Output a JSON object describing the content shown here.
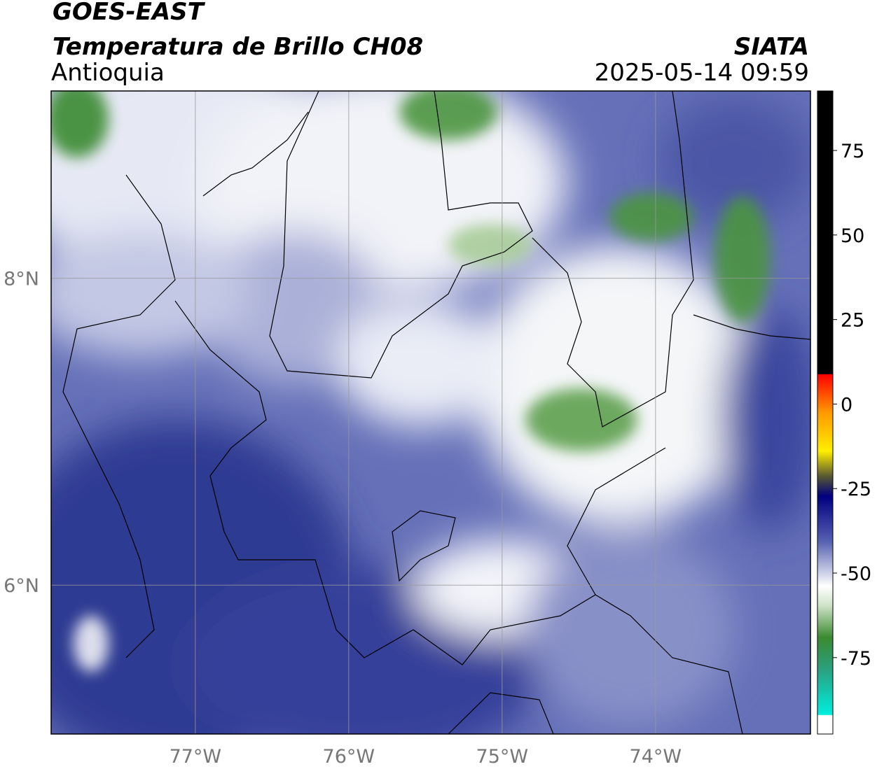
{
  "header": {
    "title": "GOES-EAST",
    "product": "Temperatura de Brillo CH08",
    "region": "Antioquia",
    "source": "SIATA",
    "timestamp": "2025-05-14 09:59"
  },
  "map": {
    "lon_lim": [
      -77.94,
      -72.99
    ],
    "lat_lim": [
      5.03,
      9.22
    ],
    "lon_ticks": [
      {
        "value": -77,
        "label": "77°W"
      },
      {
        "value": -76,
        "label": "76°W"
      },
      {
        "value": -75,
        "label": "75°W"
      },
      {
        "value": -74,
        "label": "74°W"
      }
    ],
    "lat_ticks": [
      {
        "value": 8,
        "label": "8°N"
      },
      {
        "value": 6,
        "label": "6°N"
      }
    ]
  },
  "colorbar": {
    "lim": [
      -97.6,
      92.6
    ],
    "ticks": [
      75,
      50,
      25,
      0,
      -25,
      -50,
      -75
    ]
  }
}
